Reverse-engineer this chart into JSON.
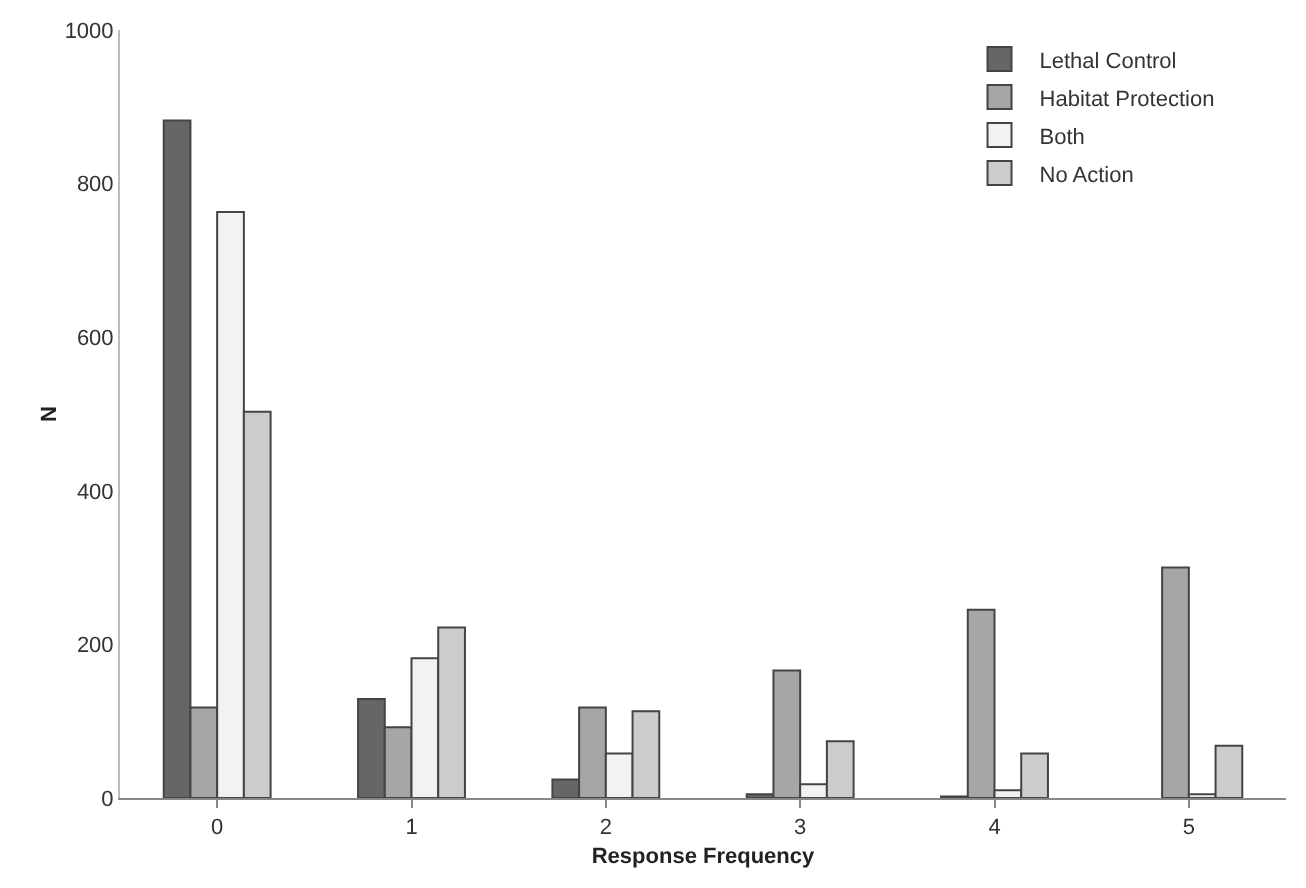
{
  "chart_data": {
    "type": "bar",
    "xlabel": "Response Frequency",
    "ylabel": "N",
    "categories": [
      "0",
      "1",
      "2",
      "3",
      "4",
      "5"
    ],
    "series": [
      {
        "name": "Lethal Control",
        "color": "#666666",
        "values": [
          882,
          129,
          24,
          5,
          2,
          null
        ]
      },
      {
        "name": "Habitat Protection",
        "color": "#a6a6a6",
        "values": [
          118,
          92,
          118,
          166,
          245,
          300
        ]
      },
      {
        "name": "Both",
        "color": "#f2f2f2",
        "values": [
          763,
          182,
          58,
          18,
          10,
          5
        ]
      },
      {
        "name": "No Action",
        "color": "#cccccc",
        "values": [
          503,
          222,
          113,
          74,
          58,
          68
        ]
      }
    ],
    "ylim": [
      0,
      1000
    ],
    "yticks": [
      0,
      200,
      400,
      600,
      800,
      1000
    ],
    "grid": false,
    "legend": "top right"
  }
}
